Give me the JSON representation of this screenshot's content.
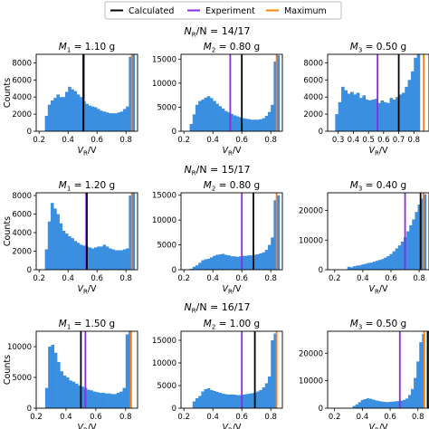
{
  "legend": [
    {
      "label": "Calculated",
      "color": "#000000"
    },
    {
      "label": "Experiment",
      "color": "#8a2be2"
    },
    {
      "label": "Maximum",
      "color": "#ff7f0e"
    }
  ],
  "bar_color": "#3b8fe0",
  "rows": [
    {
      "title": "N_R/N = 14/17"
    },
    {
      "title": "N_R/N = 15/17"
    },
    {
      "title": "N_R/N = 16/17"
    }
  ],
  "chart_data": [
    {
      "type": "bar",
      "title": "M_1 = 1.10 g",
      "xlabel": "V_R/V",
      "ylabel": "Counts",
      "xlim": [
        0.18,
        0.88
      ],
      "ylim": [
        0,
        9000
      ],
      "xticks": [
        0.2,
        0.4,
        0.6,
        0.8
      ],
      "yticks": [
        0,
        2000,
        4000,
        6000,
        8000
      ],
      "x_start": 0.24,
      "bin_width": 0.02,
      "values": [
        1800,
        3100,
        3600,
        3900,
        4300,
        4000,
        4000,
        4600,
        5200,
        4900,
        4700,
        4300,
        4000,
        3500,
        3200,
        3000,
        2900,
        2800,
        2600,
        2400,
        2300,
        2200,
        2100,
        2100,
        2100,
        2200,
        2300,
        2600,
        2900,
        8700,
        9000
      ],
      "calculated": 0.505,
      "experiment": 0.51,
      "maximum": 0.84
    },
    {
      "type": "bar",
      "title": "M_2 = 0.80 g",
      "xlabel": "V_R/V",
      "ylabel": "",
      "xlim": [
        0.18,
        0.88
      ],
      "ylim": [
        0,
        16000
      ],
      "xticks": [
        0.2,
        0.4,
        0.6,
        0.8
      ],
      "yticks": [
        0,
        5000,
        10000,
        15000
      ],
      "x_start": 0.24,
      "bin_width": 0.02,
      "values": [
        1500,
        3500,
        5500,
        6300,
        6600,
        7000,
        7300,
        6900,
        6300,
        5700,
        5200,
        4700,
        4200,
        3900,
        3600,
        3300,
        3100,
        2900,
        2700,
        2600,
        2500,
        2400,
        2400,
        2400,
        2500,
        2700,
        3200,
        4000,
        5500,
        14500,
        15800
      ],
      "calculated": 0.6,
      "experiment": 0.52,
      "maximum": 0.84
    },
    {
      "type": "bar",
      "title": "M_3 = 0.50 g",
      "xlabel": "V_R/V",
      "ylabel": "",
      "xlim": [
        0.23,
        0.9
      ],
      "ylim": [
        0,
        9000
      ],
      "xticks": [
        0.3,
        0.4,
        0.5,
        0.6,
        0.7,
        0.8
      ],
      "yticks": [
        0,
        2000,
        4000,
        6000,
        8000
      ],
      "x_start": 0.28,
      "bin_width": 0.02,
      "values": [
        2000,
        3400,
        5200,
        4800,
        4400,
        4600,
        4300,
        4500,
        3900,
        4200,
        3700,
        3600,
        3700,
        3800,
        3300,
        3600,
        3400,
        3300,
        3900,
        3700,
        4000,
        4300,
        4500,
        5200,
        6000,
        7000,
        8600,
        9000
      ],
      "calculated": 0.7,
      "experiment": 0.56,
      "maximum": 0.865
    },
    {
      "type": "bar",
      "title": "M_1 = 1.20 g",
      "xlabel": "V_R/V",
      "ylabel": "Counts",
      "xlim": [
        0.18,
        0.88
      ],
      "ylim": [
        0,
        8300
      ],
      "xticks": [
        0.2,
        0.4,
        0.6,
        0.8
      ],
      "yticks": [
        0,
        2000,
        4000,
        6000,
        8000
      ],
      "x_start": 0.24,
      "bin_width": 0.02,
      "values": [
        2200,
        5200,
        7200,
        6600,
        6000,
        5000,
        4200,
        3900,
        3600,
        3400,
        3100,
        2900,
        2700,
        2600,
        2500,
        2400,
        2300,
        2400,
        2500,
        2500,
        2700,
        2500,
        2300,
        2200,
        2100,
        2100,
        2100,
        2200,
        2300,
        8000,
        8300
      ],
      "calculated": 0.53,
      "experiment": 0.525,
      "maximum": 0.84
    },
    {
      "type": "bar",
      "title": "M_2 = 0.80 g",
      "xlabel": "V_R/V",
      "ylabel": "",
      "xlim": [
        0.18,
        0.88
      ],
      "ylim": [
        0,
        15500
      ],
      "xticks": [
        0.2,
        0.4,
        0.6,
        0.8
      ],
      "yticks": [
        0,
        5000,
        10000,
        15000
      ],
      "x_start": 0.24,
      "bin_width": 0.02,
      "values": [
        200,
        600,
        900,
        1400,
        1900,
        2100,
        2200,
        2500,
        2800,
        3000,
        3100,
        3200,
        3000,
        2900,
        2700,
        2700,
        2600,
        2700,
        2800,
        2800,
        2900,
        2900,
        3000,
        3100,
        3300,
        3500,
        4000,
        5000,
        6500,
        14000,
        15000
      ],
      "calculated": 0.68,
      "experiment": 0.6,
      "maximum": 0.84
    },
    {
      "type": "bar",
      "title": "M_3 = 0.40 g",
      "xlabel": "V_R/V",
      "ylabel": "",
      "xlim": [
        0.15,
        0.87
      ],
      "ylim": [
        0,
        26000
      ],
      "xticks": [
        0.2,
        0.4,
        0.6,
        0.8
      ],
      "yticks": [
        0,
        10000,
        20000
      ],
      "x_start": 0.29,
      "bin_width": 0.02,
      "values": [
        1000,
        800,
        1200,
        1400,
        1500,
        1800,
        2000,
        2300,
        2400,
        2700,
        3000,
        3300,
        3600,
        4100,
        4600,
        5300,
        6200,
        7200,
        8200,
        9500,
        11000,
        13000,
        15000,
        17000,
        19500,
        22000,
        24000,
        25500
      ],
      "calculated": 0.81,
      "experiment": 0.7,
      "maximum": 0.83
    },
    {
      "type": "bar",
      "title": "M_1 = 1.50 g",
      "xlabel": "V_R/V",
      "ylabel": "Counts",
      "xlim": [
        0.2,
        0.88
      ],
      "ylim": [
        0,
        12500
      ],
      "xticks": [
        0.2,
        0.4,
        0.6,
        0.8
      ],
      "yticks": [
        0,
        5000,
        10000
      ],
      "x_start": 0.26,
      "bin_width": 0.02,
      "values": [
        3300,
        10000,
        10300,
        9000,
        7500,
        6000,
        5300,
        5000,
        4500,
        4300,
        4000,
        3700,
        3500,
        3300,
        3000,
        2900,
        2700,
        2600,
        2500,
        2500,
        2400,
        2400,
        2300,
        2300,
        2500,
        2700,
        3300,
        12000,
        12500
      ],
      "calculated": 0.5,
      "experiment": 0.53,
      "maximum": 0.835
    },
    {
      "type": "bar",
      "title": "M_2 = 1.00 g",
      "xlabel": "V_R/V",
      "ylabel": "",
      "xlim": [
        0.18,
        0.88
      ],
      "ylim": [
        0,
        17000
      ],
      "xticks": [
        0.2,
        0.4,
        0.6,
        0.8
      ],
      "yticks": [
        0,
        5000,
        10000,
        15000
      ],
      "x_start": 0.26,
      "bin_width": 0.02,
      "values": [
        1500,
        2200,
        2700,
        3700,
        4200,
        4400,
        4000,
        3800,
        3600,
        3400,
        3200,
        3100,
        3000,
        3000,
        3000,
        2900,
        2900,
        3000,
        3100,
        3200,
        3300,
        3400,
        3700,
        4000,
        4600,
        5500,
        7000,
        15000,
        16500
      ],
      "calculated": 0.69,
      "experiment": 0.6,
      "maximum": 0.84
    },
    {
      "type": "bar",
      "title": "M_3 = 0.50 g",
      "xlabel": "V_R/V",
      "ylabel": "",
      "xlim": [
        0.15,
        0.88
      ],
      "ylim": [
        0,
        28000
      ],
      "xticks": [
        0.2,
        0.4,
        0.6,
        0.8
      ],
      "yticks": [
        0,
        10000,
        20000
      ],
      "x_start": 0.33,
      "bin_width": 0.02,
      "values": [
        800,
        1400,
        2200,
        3000,
        3300,
        3600,
        3400,
        3100,
        2800,
        2600,
        2400,
        2300,
        2200,
        2300,
        2400,
        2500,
        2600,
        2700,
        3000,
        3500,
        4800,
        7000,
        11000,
        17000,
        24000,
        27000
      ],
      "calculated": 0.87,
      "experiment": 0.67,
      "maximum": 0.845
    }
  ]
}
